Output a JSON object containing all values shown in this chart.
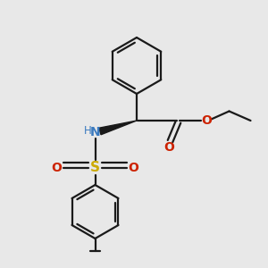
{
  "bg_color": "#e8e8e8",
  "bond_color": "#1a1a1a",
  "N_color": "#3a7abf",
  "O_color": "#cc2200",
  "S_color": "#ccaa00",
  "line_width": 1.6,
  "figsize": [
    3.0,
    3.0
  ],
  "dpi": 100,
  "xlim": [
    0,
    10
  ],
  "ylim": [
    0,
    10
  ]
}
